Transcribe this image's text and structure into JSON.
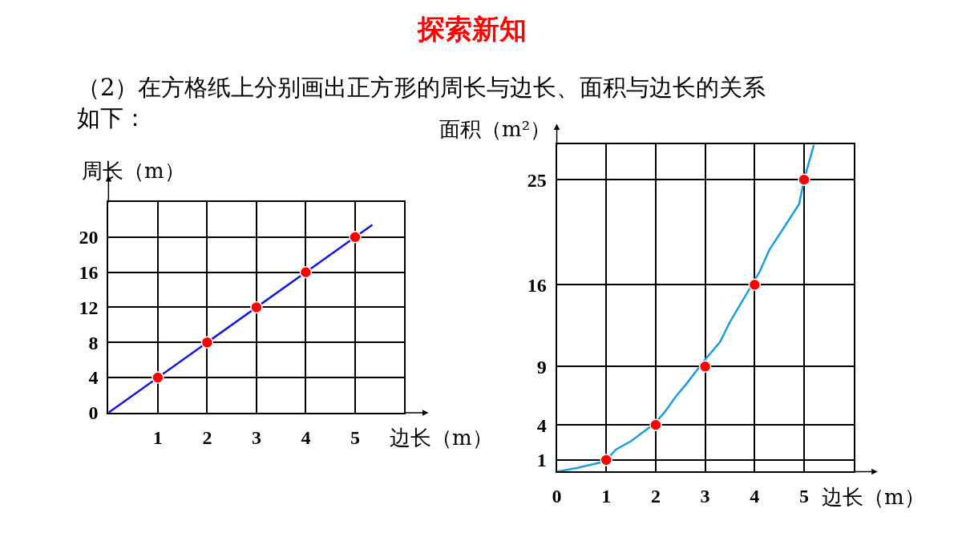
{
  "chart_data": [
    {
      "type": "line",
      "title": "探索新知",
      "subtitle": "（2）在方格纸上分别画出正方形的周长与边长、面积与边长的关系如下：",
      "xlabel": "边长（m）",
      "ylabel": "周长（m）",
      "xlim": [
        0,
        6
      ],
      "xticks": [
        1,
        2,
        3,
        4,
        5
      ],
      "ylim": [
        0,
        24
      ],
      "yticks": [
        0,
        4,
        8,
        12,
        16,
        20
      ],
      "grid": true,
      "series": [
        {
          "color": "#1414e6",
          "x": [
            0,
            5.35
          ],
          "values": [
            0,
            21.4
          ]
        },
        {
          "type": "scatter",
          "marker": "circle",
          "color": "#ff0000",
          "x": [
            1,
            2,
            3,
            4,
            5
          ],
          "values": [
            4,
            8,
            12,
            16,
            20
          ]
        }
      ]
    },
    {
      "type": "line",
      "xlabel": "边长（m）",
      "ylabel": "面积（m²）",
      "xlim": [
        0,
        6
      ],
      "xticks": [
        0,
        1,
        2,
        3,
        4,
        5
      ],
      "ylim": [
        0,
        28
      ],
      "yticks": [
        1,
        4,
        9,
        16,
        25
      ],
      "grid": true,
      "series": [
        {
          "color": "#1b9de2",
          "x": [
            0,
            0.4,
            0.9,
            1.0,
            1.2,
            1.5,
            2.0,
            2.2,
            2.4,
            2.6,
            3.0,
            3.3,
            3.5,
            4.1,
            4.3,
            4.7,
            4.9,
            5.0,
            5.2
          ],
          "values": [
            0,
            0.3,
            0.8,
            1.0,
            1.9,
            2.6,
            4.2,
            5.2,
            6.4,
            7.4,
            9.6,
            11.1,
            12.8,
            17.1,
            19.0,
            21.6,
            22.9,
            25,
            28
          ]
        },
        {
          "type": "scatter",
          "marker": "circle",
          "color": "#ff0000",
          "x": [
            1,
            2,
            3,
            4,
            5
          ],
          "values": [
            1,
            4,
            9,
            16,
            25
          ]
        }
      ]
    }
  ]
}
